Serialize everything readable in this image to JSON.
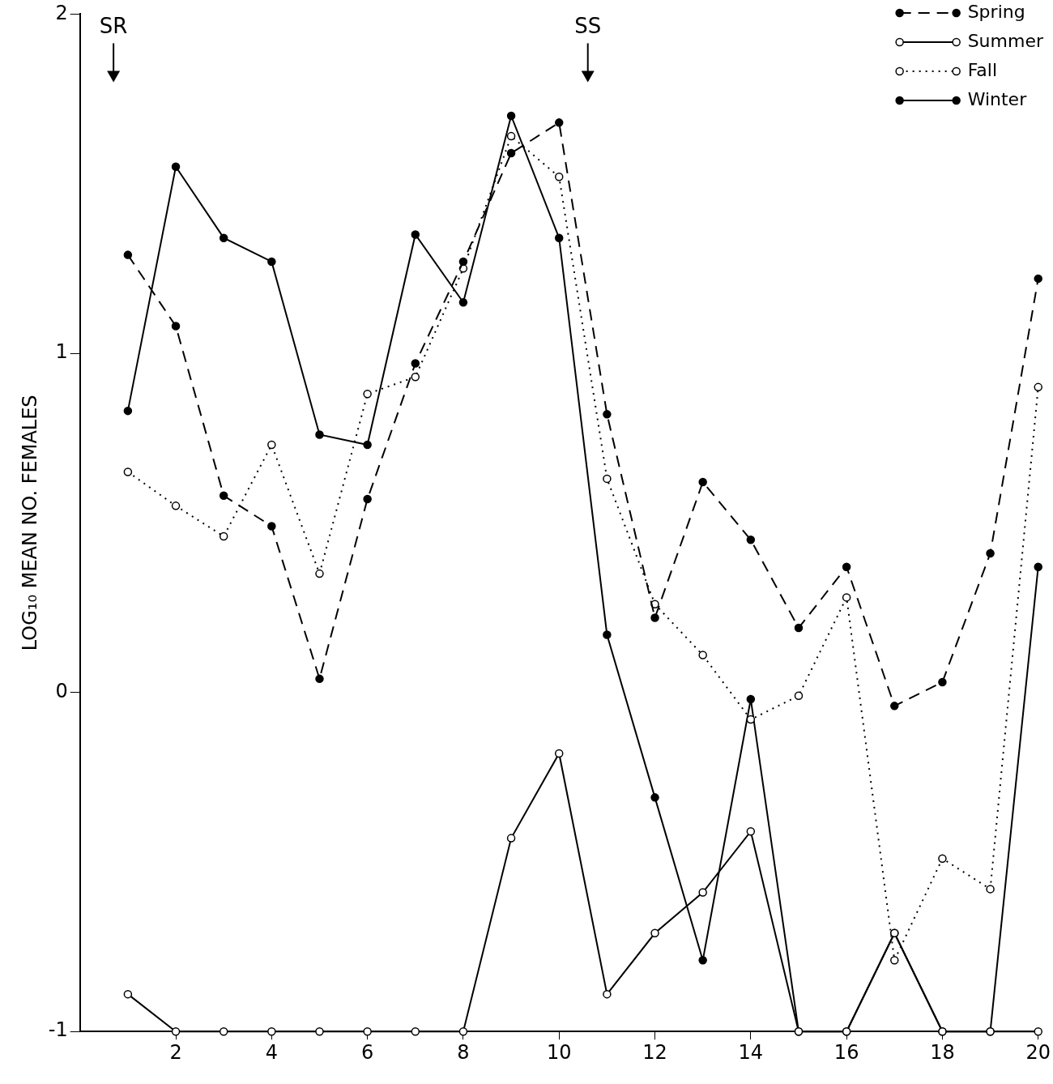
{
  "chart_data": {
    "type": "line",
    "y_label": "LOG₁₀ MEAN NO. FEMALES",
    "x": [
      1,
      2,
      3,
      4,
      5,
      6,
      7,
      8,
      9,
      10,
      11,
      12,
      13,
      14,
      15,
      16,
      17,
      18,
      19,
      20
    ],
    "series": [
      {
        "name": "Spring",
        "color": "#000000",
        "line_style": "dashed",
        "marker": "circle",
        "values": [
          1.29,
          1.08,
          0.58,
          0.49,
          0.04,
          0.57,
          0.97,
          1.27,
          1.59,
          1.68,
          0.82,
          0.22,
          0.62,
          0.45,
          0.19,
          0.37,
          -0.04,
          0.03,
          0.41,
          1.22
        ]
      },
      {
        "name": "Summer",
        "color": "#000000",
        "line_style": "solid",
        "marker": "circle-open",
        "values": [
          -0.89,
          -1,
          -1,
          -1,
          -1,
          -1,
          -1,
          -1,
          -0.43,
          -0.18,
          -0.89,
          -0.71,
          -0.59,
          -0.41,
          -1,
          -1,
          -0.71,
          -1,
          -1,
          -1
        ]
      },
      {
        "name": "Fall",
        "color": "#000000",
        "line_style": "dotted",
        "marker": "circle-open",
        "values": [
          0.65,
          0.55,
          0.46,
          0.73,
          0.35,
          0.88,
          0.93,
          1.25,
          1.64,
          1.52,
          0.63,
          0.26,
          0.11,
          -0.08,
          -0.01,
          0.28,
          -0.79,
          -0.49,
          -0.58,
          0.9
        ]
      },
      {
        "name": "Winter",
        "color": "#000000",
        "line_style": "solid",
        "marker": "circle",
        "values": [
          0.83,
          1.55,
          1.34,
          1.27,
          0.76,
          0.73,
          1.35,
          1.15,
          1.7,
          1.34,
          0.17,
          -0.31,
          -0.79,
          -0.02,
          -1,
          -1,
          -0.71,
          -1,
          -1,
          0.37
        ]
      }
    ],
    "annotations": [
      {
        "text": "SR",
        "x": 0.7
      },
      {
        "text": "SS",
        "x": 10.6
      }
    ],
    "xlim": [
      0,
      20
    ],
    "xticks": [
      2,
      4,
      6,
      8,
      10,
      12,
      14,
      16,
      18,
      20
    ],
    "ylim": [
      -1,
      2
    ],
    "yticks": [
      -1,
      0,
      1,
      2
    ],
    "grid": false,
    "legend": "upper right"
  }
}
